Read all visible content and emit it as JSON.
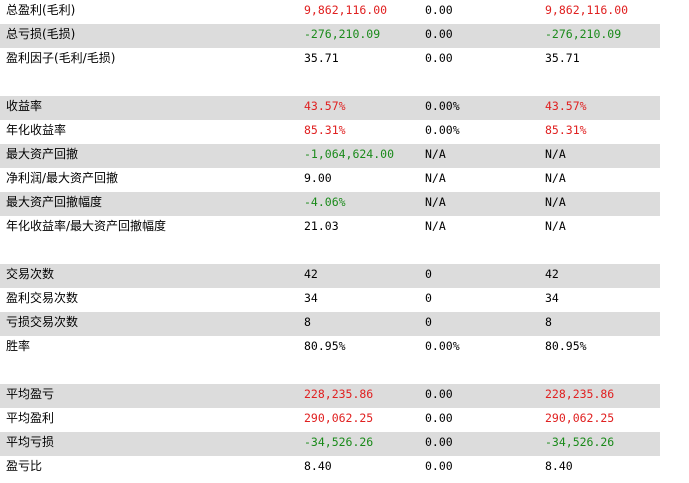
{
  "colors": {
    "positive": "#e02020",
    "negative": "#1a8a1a",
    "row_shade": "#dcdcdc"
  },
  "rows": [
    {
      "label": "总盈利(毛利)",
      "v1": "9,862,116.00",
      "v2": "0.00",
      "v3": "9,862,116.00",
      "tone": "pos",
      "shaded": false
    },
    {
      "label": "总亏损(毛损)",
      "v1": "-276,210.09",
      "v2": "0.00",
      "v3": "-276,210.09",
      "tone": "neg",
      "shaded": true
    },
    {
      "label": "盈利因子(毛利/毛损)",
      "v1": "35.71",
      "v2": "0.00",
      "v3": "35.71",
      "tone": "",
      "shaded": false
    },
    {
      "label": "",
      "v1": "",
      "v2": "",
      "v3": "",
      "tone": "",
      "shaded": false
    },
    {
      "label": "收益率",
      "v1": "43.57%",
      "v2": "0.00%",
      "v3": "43.57%",
      "tone": "pos",
      "shaded": true
    },
    {
      "label": "年化收益率",
      "v1": "85.31%",
      "v2": "0.00%",
      "v3": "85.31%",
      "tone": "pos",
      "shaded": false
    },
    {
      "label": "最大资产回撤",
      "v1": "-1,064,624.00",
      "v2": "N/A",
      "v3": "N/A",
      "tone": "neg",
      "shaded": true
    },
    {
      "label": "净利润/最大资产回撤",
      "v1": "9.00",
      "v2": "N/A",
      "v3": "N/A",
      "tone": "",
      "shaded": false
    },
    {
      "label": "最大资产回撤幅度",
      "v1": "-4.06%",
      "v2": "N/A",
      "v3": "N/A",
      "tone": "neg",
      "shaded": true
    },
    {
      "label": "年化收益率/最大资产回撤幅度",
      "v1": "21.03",
      "v2": "N/A",
      "v3": "N/A",
      "tone": "",
      "shaded": false
    },
    {
      "label": "",
      "v1": "",
      "v2": "",
      "v3": "",
      "tone": "",
      "shaded": false
    },
    {
      "label": "交易次数",
      "v1": "42",
      "v2": "0",
      "v3": "42",
      "tone": "",
      "shaded": true
    },
    {
      "label": "盈利交易次数",
      "v1": "34",
      "v2": "0",
      "v3": "34",
      "tone": "",
      "shaded": false
    },
    {
      "label": "亏损交易次数",
      "v1": "8",
      "v2": "0",
      "v3": "8",
      "tone": "",
      "shaded": true
    },
    {
      "label": "胜率",
      "v1": "80.95%",
      "v2": "0.00%",
      "v3": "80.95%",
      "tone": "",
      "shaded": false
    },
    {
      "label": "",
      "v1": "",
      "v2": "",
      "v3": "",
      "tone": "",
      "shaded": false
    },
    {
      "label": "平均盈亏",
      "v1": "228,235.86",
      "v2": "0.00",
      "v3": "228,235.86",
      "tone": "pos",
      "shaded": true
    },
    {
      "label": "平均盈利",
      "v1": "290,062.25",
      "v2": "0.00",
      "v3": "290,062.25",
      "tone": "pos",
      "shaded": false
    },
    {
      "label": "平均亏损",
      "v1": "-34,526.26",
      "v2": "0.00",
      "v3": "-34,526.26",
      "tone": "neg",
      "shaded": true
    },
    {
      "label": "盈亏比",
      "v1": "8.40",
      "v2": "0.00",
      "v3": "8.40",
      "tone": "",
      "shaded": false
    }
  ]
}
